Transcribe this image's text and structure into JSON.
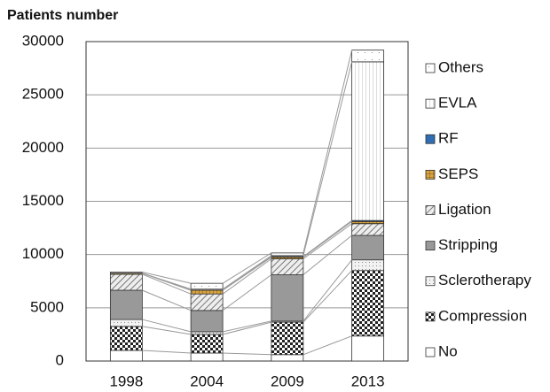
{
  "chart_data": {
    "type": "stacked_bar",
    "y_label": "Patients number",
    "categories": [
      "1998",
      "2004",
      "2009",
      "2013"
    ],
    "ylim": [
      0,
      30000
    ],
    "yticks": [
      0,
      5000,
      10000,
      15000,
      20000,
      25000,
      30000
    ],
    "grid": true,
    "legend": "right",
    "series": [
      {
        "name": "No",
        "color": "#ffffff",
        "pattern": "none",
        "values": [
          1000,
          750,
          600,
          2350
        ]
      },
      {
        "name": "Compression",
        "color": "#333333",
        "pattern": "checker",
        "values": [
          2250,
          1750,
          3050,
          6150
        ]
      },
      {
        "name": "Sclerotherapy",
        "color": "#dddddd",
        "pattern": "dots",
        "values": [
          650,
          250,
          100,
          1000
        ]
      },
      {
        "name": "Stripping",
        "color": "#999999",
        "pattern": "none",
        "values": [
          2750,
          2000,
          4350,
          2300
        ]
      },
      {
        "name": "Ligation",
        "color": "#cccccc",
        "pattern": "diagonal",
        "values": [
          1500,
          1550,
          1500,
          1100
        ]
      },
      {
        "name": "SEPS",
        "color": "#d9a441",
        "pattern": "grid",
        "values": [
          100,
          350,
          150,
          200
        ]
      },
      {
        "name": "RF",
        "color": "#2f6db5",
        "pattern": "none",
        "values": [
          0,
          0,
          50,
          100
        ]
      },
      {
        "name": "EVLA",
        "color": "#ffffff",
        "pattern": "vertical",
        "values": [
          0,
          100,
          100,
          14900
        ]
      },
      {
        "name": "Others",
        "color": "#ffffff",
        "pattern": "sparse",
        "values": [
          100,
          550,
          250,
          1100
        ]
      }
    ]
  }
}
